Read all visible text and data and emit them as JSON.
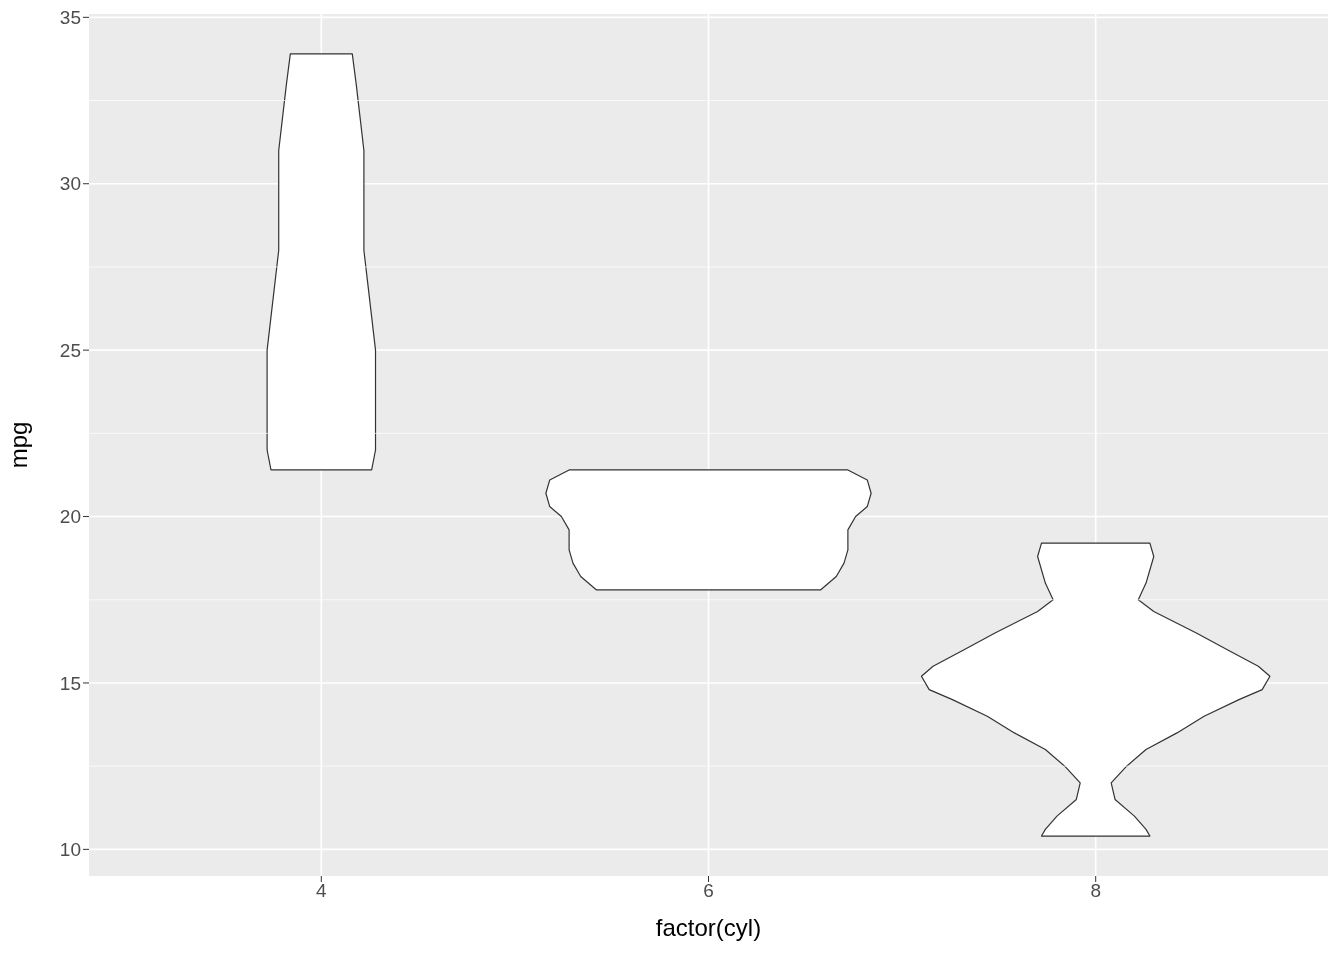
{
  "chart_data": {
    "type": "area",
    "xlabel": "factor(cyl)",
    "ylabel": "mpg",
    "xlim": [
      2.8,
      9.2
    ],
    "xticks": [
      4,
      6,
      8
    ],
    "ylim": [
      9.2,
      35.1
    ],
    "yticks": [
      10,
      15,
      20,
      25,
      30,
      35
    ],
    "grid": true,
    "series": [
      {
        "color": "#ffffff",
        "x": [
          3.84,
          3.82,
          3.8,
          3.78,
          3.78,
          3.78,
          3.78,
          3.76,
          3.74,
          3.72,
          3.72,
          3.72,
          3.72,
          3.74,
          4.26,
          4.28,
          4.28,
          4.28,
          4.28,
          4.26,
          4.24,
          4.22,
          4.22,
          4.22,
          4.22,
          4.2,
          4.18,
          4.16
        ],
        "values": [
          33.9,
          33,
          32,
          31,
          30,
          29,
          28,
          27,
          26,
          25,
          24,
          23,
          22,
          21.4,
          21.4,
          22,
          23,
          24,
          25,
          26,
          27,
          28,
          29,
          30,
          31,
          32,
          33,
          33.9
        ]
      },
      {
        "color": "#ffffff",
        "x": [
          5.28,
          5.18,
          5.16,
          5.18,
          5.24,
          5.28,
          5.28,
          5.3,
          5.34,
          5.42,
          6.58,
          6.66,
          6.7,
          6.72,
          6.72,
          6.76,
          6.82,
          6.84,
          6.82,
          6.72
        ],
        "values": [
          21.4,
          21.1,
          20.7,
          20.3,
          20,
          19.6,
          19,
          18.6,
          18.2,
          17.8,
          17.8,
          18.2,
          18.6,
          19,
          19.6,
          20,
          20.3,
          20.7,
          21.1,
          21.4
        ]
      },
      {
        "color": "#ffffff",
        "x": [
          7.72,
          7.7,
          7.74,
          7.78,
          7.7,
          7.48,
          7.32,
          7.16,
          7.1,
          7.14,
          7.26,
          7.44,
          7.58,
          7.74,
          7.84,
          7.92,
          7.9,
          7.8,
          7.74,
          7.72,
          8.28,
          8.26,
          8.2,
          8.1,
          8.08,
          8.16,
          8.26,
          8.42,
          8.56,
          8.74,
          8.86,
          8.9,
          8.84,
          8.68,
          8.52,
          8.3,
          8.22,
          8.26,
          8.3,
          8.28
        ],
        "values": [
          19.2,
          18.8,
          18,
          17.5,
          17.15,
          16.5,
          16,
          15.5,
          15.2,
          14.8,
          14.5,
          14,
          13.5,
          13,
          12.5,
          12,
          11.5,
          11,
          10.6,
          10.4,
          10.4,
          10.6,
          11,
          11.5,
          12,
          12.5,
          13,
          13.5,
          14,
          14.5,
          14.8,
          15.2,
          15.5,
          16,
          16.5,
          17.15,
          17.5,
          18,
          18.8,
          19.2
        ]
      }
    ]
  }
}
